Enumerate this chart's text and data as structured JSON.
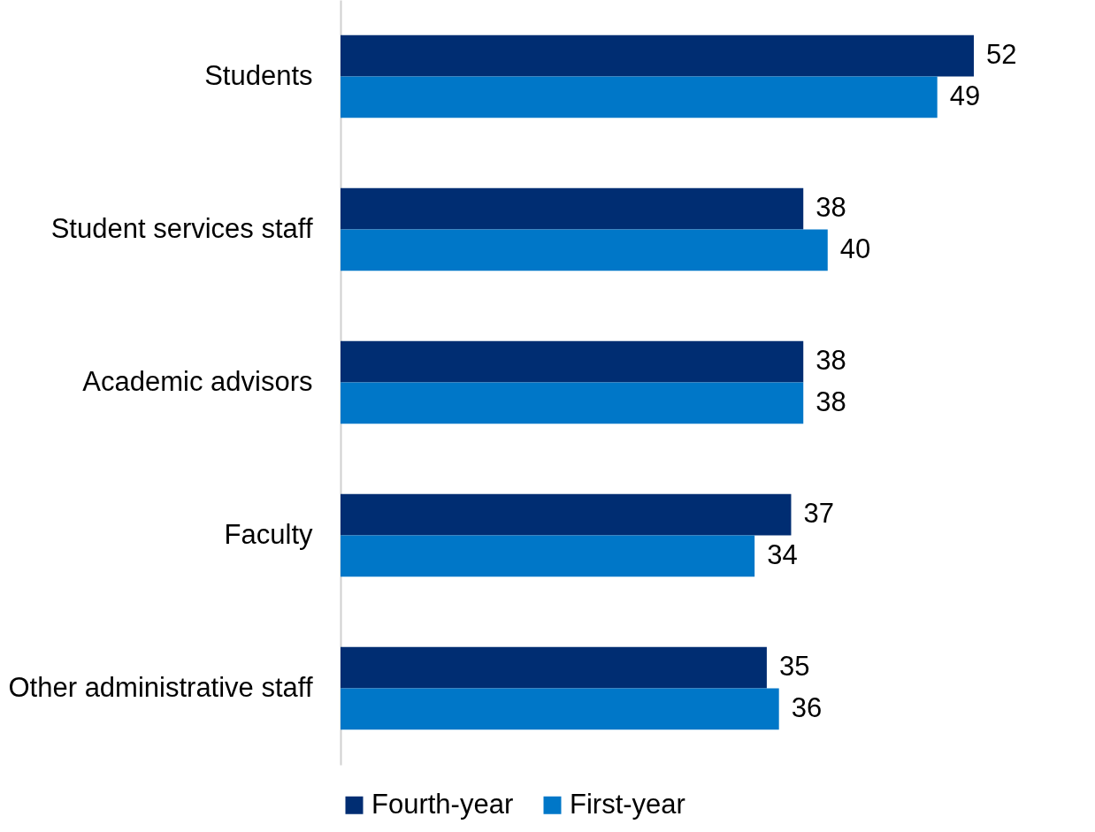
{
  "chart_data": {
    "type": "bar",
    "orientation": "horizontal",
    "categories": [
      "Students",
      "Student services staff",
      "Academic advisors",
      "Faculty",
      "Other administrative staff"
    ],
    "series": [
      {
        "name": "Fourth-year",
        "color": "#002d72",
        "values": [
          52,
          38,
          38,
          37,
          35
        ]
      },
      {
        "name": "First-year",
        "color": "#0077c8",
        "values": [
          49,
          40,
          38,
          34,
          36
        ]
      }
    ],
    "data_labels": true,
    "legend": "bottom",
    "tick_labels": "y"
  }
}
